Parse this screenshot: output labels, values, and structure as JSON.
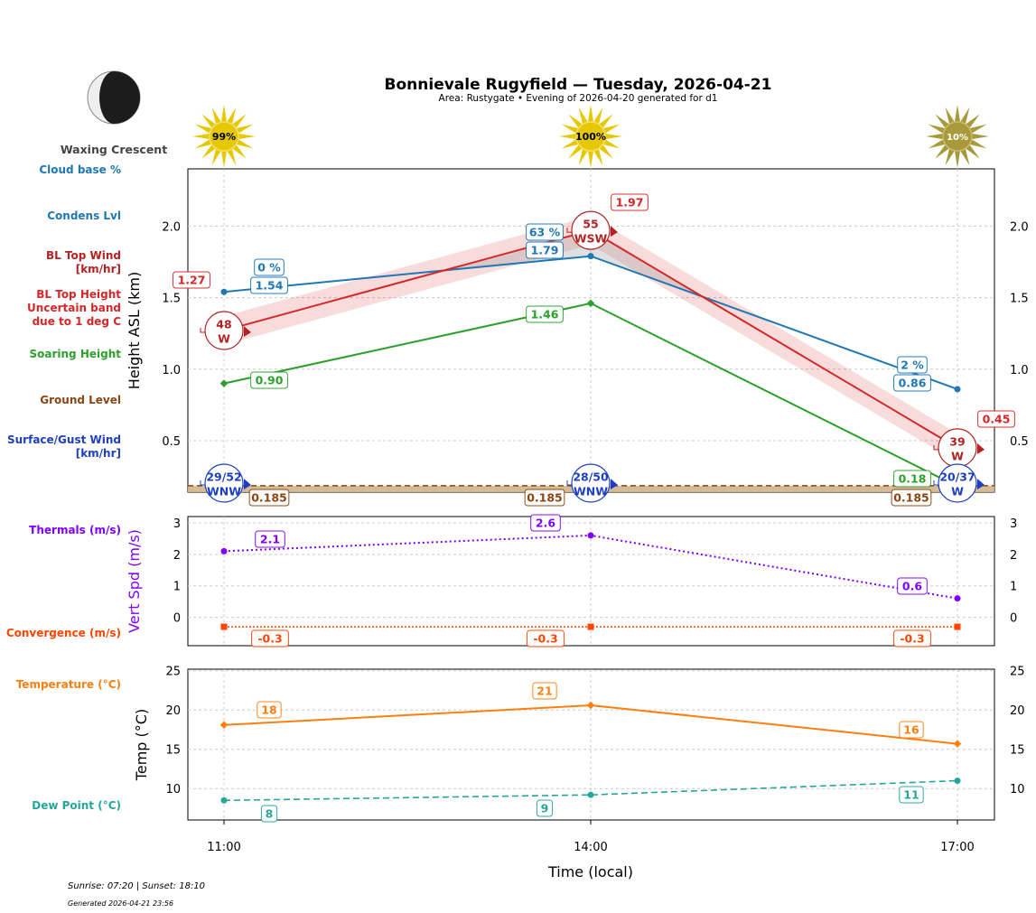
{
  "header": {
    "title": "Bonnievale Rugyfield — Tuesday, 2026-04-21",
    "subtitle": "Area: Rustygate • Evening of 2026-04-20 generated for d1",
    "moon_phase": "Waxing Crescent",
    "moon_icon": "waxing-crescent-moon-icon",
    "sun_icon": "sun-icon",
    "sun_percent": [
      "99%",
      "100%",
      "10%"
    ]
  },
  "side_labels": {
    "cloud_base": "Cloud base %",
    "condens": "Condens Lvl",
    "bl_wind": [
      "BL Top Wind",
      "[km/hr]"
    ],
    "bl_top": [
      "BL Top Height",
      "Uncertain band",
      "due to 1 deg C"
    ],
    "soaring": "Soaring Height",
    "ground": "Ground Level",
    "surface_wind": [
      "Surface/Gust Wind",
      "[km/hr]"
    ],
    "thermals": "Thermals (m/s)",
    "convergence": "Convergence (m/s)",
    "temperature": "Temperature (°C)",
    "dew_point": "Dew Point (°C)"
  },
  "footer": {
    "sun_times": "Sunrise: 07:20 | Sunset: 18:10",
    "generated": "Generated 2026-04-21 23:56"
  },
  "colors": {
    "cloud": "#1f77b4",
    "bl_top": "#d62728",
    "bl_wind": "#b22222",
    "soaring": "#2ca02c",
    "ground": "#8b4513",
    "surface_wind": "#1e3fbf",
    "thermals": "#7f00ff",
    "convergence": "#ff4500",
    "temperature": "#ff7f0e",
    "dew_point": "#26a69a"
  },
  "chart_data": [
    {
      "type": "line",
      "ylabel": "Height ASL (km)",
      "ylim": [
        0.14,
        2.4
      ],
      "yticks": [
        "0.5",
        "1.0",
        "1.5",
        "2.0"
      ],
      "x": [
        "11:00",
        "14:00",
        "17:00"
      ],
      "grid": true,
      "series": [
        {
          "name": "Condens Lvl",
          "values": [
            1.54,
            1.79,
            0.86
          ],
          "labels": [
            "1.54",
            "1.79",
            "0.86"
          ],
          "cloud_percent": [
            "0 %",
            "63 %",
            "2 %"
          ]
        },
        {
          "name": "BL Top Height",
          "values": [
            1.27,
            1.97,
            0.45
          ],
          "labels": [
            "1.27",
            "1.97",
            "0.45"
          ],
          "uncertainty": 0.1
        },
        {
          "name": "BL Top Wind",
          "speed": [
            "48",
            "55",
            "39"
          ],
          "direction": [
            "W",
            "WSW",
            "W"
          ]
        },
        {
          "name": "Soaring Height",
          "values": [
            0.9,
            1.46,
            0.18
          ],
          "labels": [
            "0.90",
            "1.46",
            "0.18"
          ]
        },
        {
          "name": "Ground Level",
          "values": [
            0.185,
            0.185,
            0.185
          ],
          "labels": [
            "0.185",
            "0.185",
            "0.185"
          ]
        },
        {
          "name": "Surface/Gust Wind",
          "speed": [
            "29/52",
            "28/50",
            "20/37"
          ],
          "direction": [
            "WNW",
            "WNW",
            "W"
          ]
        }
      ]
    },
    {
      "type": "line",
      "ylabel": "Vert Spd (m/s)",
      "ylim": [
        -0.9,
        3.2
      ],
      "yticks": [
        "0",
        "1",
        "2",
        "3"
      ],
      "x": [
        "11:00",
        "14:00",
        "17:00"
      ],
      "grid": true,
      "series": [
        {
          "name": "Thermals (m/s)",
          "values": [
            2.1,
            2.6,
            0.6
          ],
          "labels": [
            "2.1",
            "2.6",
            "0.6"
          ]
        },
        {
          "name": "Convergence (m/s)",
          "values": [
            -0.3,
            -0.3,
            -0.3
          ],
          "labels": [
            "-0.3",
            "-0.3",
            "-0.3"
          ]
        }
      ]
    },
    {
      "type": "line",
      "ylabel": "Temp (°C)",
      "xlabel": "Time (local)",
      "ylim": [
        6,
        25.2
      ],
      "yticks": [
        "10",
        "15",
        "20",
        "25"
      ],
      "x": [
        "11:00",
        "14:00",
        "17:00"
      ],
      "grid": true,
      "series": [
        {
          "name": "Temperature (°C)",
          "values": [
            18.1,
            20.6,
            15.7
          ],
          "labels": [
            "18",
            "21",
            "16"
          ]
        },
        {
          "name": "Dew Point (°C)",
          "values": [
            8.5,
            9.2,
            11.0
          ],
          "labels": [
            "8",
            "9",
            "11"
          ]
        }
      ]
    }
  ]
}
